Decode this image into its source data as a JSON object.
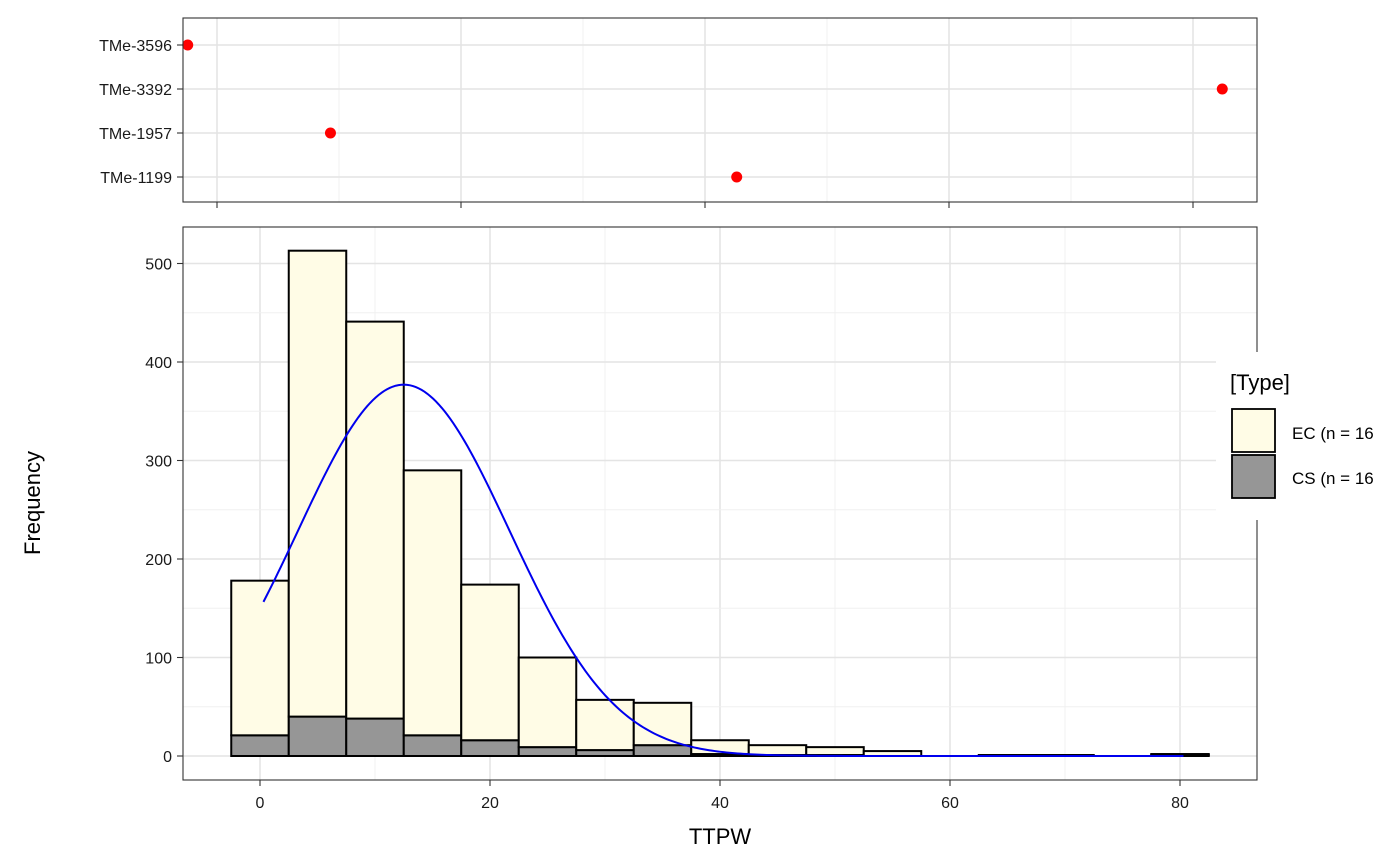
{
  "chart_data": [
    {
      "type": "scatter",
      "panel": "top",
      "categories": [
        "TMe-3596",
        "TMe-3392",
        "TMe-1957",
        "TMe-1199"
      ],
      "points": [
        {
          "label": "TMe-3596",
          "x": -2.4
        },
        {
          "label": "TMe-3392",
          "x": 82.4
        },
        {
          "label": "TMe-1957",
          "x": 9.3
        },
        {
          "label": "TMe-1199",
          "x": 42.6
        }
      ],
      "point_color": "#ff0000",
      "xlim": [
        -8.4,
        108.2
      ],
      "grid": true
    },
    {
      "type": "bar",
      "panel": "bottom",
      "stacked": true,
      "bin_edges": [
        -2.5,
        2.5,
        7.5,
        12.5,
        17.5,
        22.5,
        27.5,
        32.5,
        37.5,
        42.5,
        47.5,
        52.5,
        57.5,
        62.5,
        67.5,
        72.5,
        77.5,
        82.5
      ],
      "series": [
        {
          "name": "EC (n = 16",
          "color": "#fffce6",
          "values": [
            157,
            473,
            403,
            269,
            158,
            91,
            51,
            43,
            14,
            10,
            8,
            5,
            0,
            1,
            1,
            0,
            1
          ]
        },
        {
          "name": "CS (n = 16",
          "color": "#969696",
          "values": [
            21,
            40,
            38,
            21,
            16,
            9,
            6,
            11,
            2,
            1,
            1,
            0,
            0,
            0,
            0,
            0,
            1
          ]
        }
      ],
      "density_curve": {
        "color": "#0000ee",
        "mean": 12.5,
        "sd": 9.2,
        "peak": 377,
        "x_start": 0.3,
        "x_end": 80.5
      },
      "xlabel": "TTPW",
      "ylabel": "Frequency",
      "xticks": [
        0,
        20,
        40,
        60,
        80
      ],
      "yticks": [
        0,
        100,
        200,
        300,
        400,
        500
      ],
      "xlim": [
        -8.4,
        108.2
      ],
      "ylim": [
        -25,
        545
      ],
      "grid": true,
      "legend": {
        "title": "[Type]",
        "placement": "right",
        "entries": [
          "EC (n = 16",
          "CS (n = 16"
        ]
      }
    }
  ]
}
